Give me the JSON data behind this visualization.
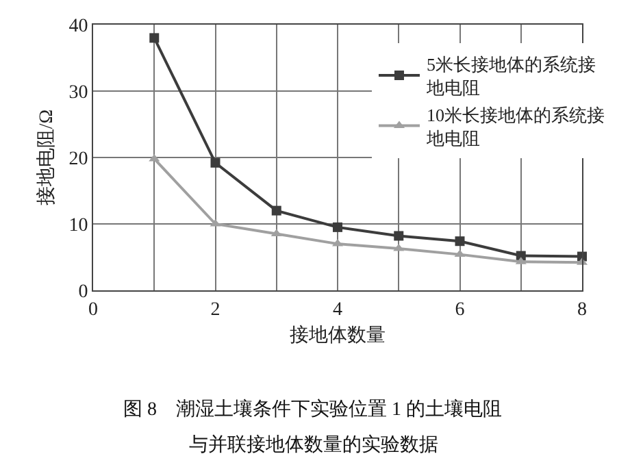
{
  "chart_data": {
    "type": "line",
    "xlabel": "接地体数量",
    "ylabel": "接地电阻/Ω",
    "x": [
      1,
      2,
      3,
      4,
      5,
      6,
      7,
      8
    ],
    "series": [
      {
        "name": "5米长接地体的系统接地电阻",
        "color": "#3c3c3c",
        "marker": "square",
        "values": [
          38,
          19.2,
          12,
          9.5,
          8.2,
          7.4,
          5.2,
          5.1
        ]
      },
      {
        "name": "10米长接地体的系统接地电阻",
        "color": "#a0a0a0",
        "marker": "triangle",
        "values": [
          19.8,
          10,
          8.5,
          7,
          6.3,
          5.4,
          4.3,
          4.2
        ]
      }
    ],
    "xlim": [
      0,
      8
    ],
    "xticks": [
      0,
      {
        "value": 1,
        "label": null
      },
      2,
      {
        "value": 3,
        "label": null
      },
      4,
      {
        "value": 5,
        "label": null
      },
      6,
      {
        "value": 7,
        "label": null
      },
      8
    ],
    "ylim": [
      0,
      40
    ],
    "yticks": [
      0,
      10,
      20,
      30,
      40
    ],
    "grid": true,
    "legend": "top right",
    "line_style": "solid",
    "annotations": [
      "图 8　潮湿土壤条件下实验位置 1 的土壤电阻",
      "与并联接地体数量的实验数据"
    ]
  }
}
